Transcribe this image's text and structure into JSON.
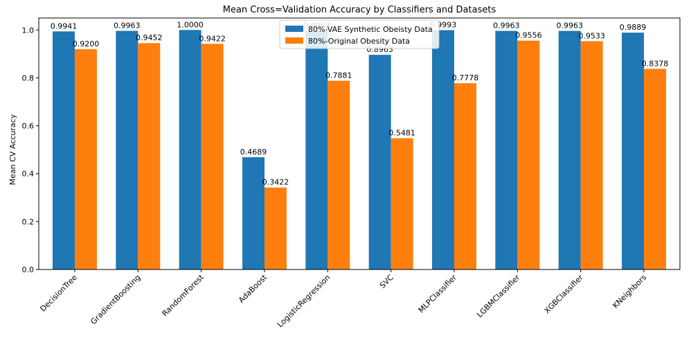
{
  "chart_data": {
    "type": "bar",
    "title": "Mean Cross=Validation Accuracy by Classifiers and Datasets",
    "xlabel": "",
    "ylabel": "Mean CV Accuracy",
    "ylim": [
      0,
      1.0
    ],
    "yticks": [
      "0.0",
      "0.2",
      "0.4",
      "0.6",
      "0.8",
      "1.0"
    ],
    "grid": false,
    "legend_position": "top-center",
    "categories": [
      "DecisionTree",
      "GradientBoosting",
      "RandomForest",
      "AdaBoost",
      "LogisticRegression",
      "SVC",
      "MLPClassifier",
      "LGBMClassifier",
      "XGBClassifier",
      "KNeighbors"
    ],
    "series": [
      {
        "name": "80%-VAE Synthetic Obeisty Data",
        "color": "#1f77b4",
        "values": [
          0.9941,
          0.9963,
          1.0,
          0.4689,
          0.9963,
          0.8963,
          0.9993,
          0.9963,
          0.9963,
          0.9889
        ]
      },
      {
        "name": "80%-Original Obesity Data",
        "color": "#ff7f0e",
        "values": [
          0.92,
          0.9452,
          0.9422,
          0.3422,
          0.7881,
          0.5481,
          0.7778,
          0.9556,
          0.9533,
          0.8378
        ]
      }
    ]
  }
}
